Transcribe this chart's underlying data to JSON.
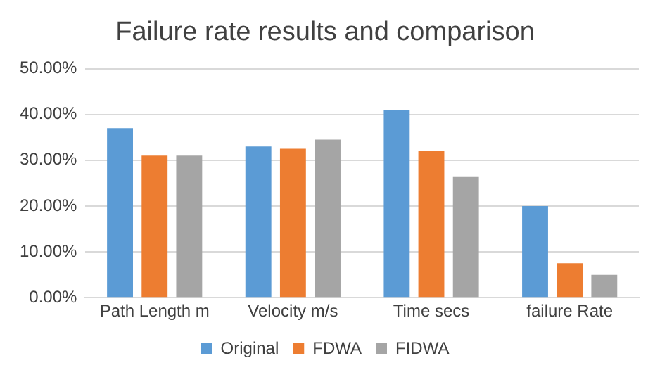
{
  "chart_data": {
    "type": "bar",
    "title": "Failure rate results and comparison",
    "categories": [
      "Path Length m",
      "Velocity m/s",
      "Time secs",
      "failure Rate"
    ],
    "series": [
      {
        "name": "Original",
        "color": "#5b9bd5",
        "values": [
          37,
          33,
          41,
          20
        ]
      },
      {
        "name": "FDWA",
        "color": "#ed7d31",
        "values": [
          31,
          32.5,
          32,
          7.5
        ]
      },
      {
        "name": "FIDWA",
        "color": "#a5a5a5",
        "values": [
          31,
          34.5,
          26.5,
          5
        ]
      }
    ],
    "ylim": [
      0,
      50
    ],
    "yticks": [
      {
        "value": 0,
        "label": "0.00%"
      },
      {
        "value": 10,
        "label": "10.00%"
      },
      {
        "value": 20,
        "label": "20.00%"
      },
      {
        "value": 30,
        "label": "30.00%"
      },
      {
        "value": 40,
        "label": "40.00%"
      },
      {
        "value": 50,
        "label": "50.00%"
      }
    ],
    "grid": "y",
    "legend": "bottom"
  }
}
